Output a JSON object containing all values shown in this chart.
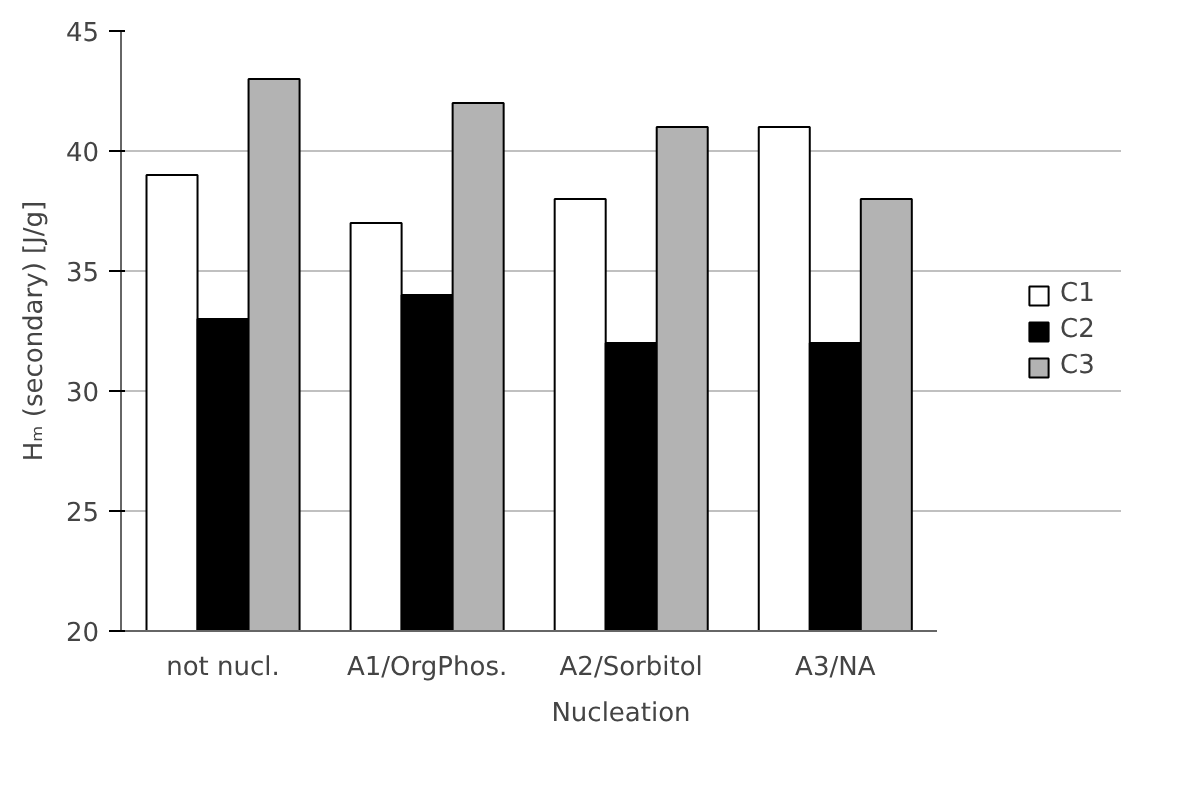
{
  "chart_data": {
    "type": "bar",
    "xlabel": "Nucleation",
    "ylabel": "Hₘ (secondary) [J/g]",
    "categories": [
      "not nucl.",
      "A1/OrgPhos.",
      "A2/Sorbitol",
      "A3/NA"
    ],
    "series": [
      {
        "name": "C1",
        "color": "#ffffff",
        "values": [
          39,
          37,
          38,
          41
        ]
      },
      {
        "name": "C2",
        "color": "#000000",
        "values": [
          33,
          34,
          32,
          32
        ]
      },
      {
        "name": "C3",
        "color": "#b3b3b3",
        "values": [
          43,
          42,
          41,
          38
        ]
      }
    ],
    "ylim": [
      20,
      45
    ],
    "yticks": [
      20,
      25,
      30,
      35,
      40,
      45
    ],
    "grid": "y",
    "legend": "right"
  }
}
